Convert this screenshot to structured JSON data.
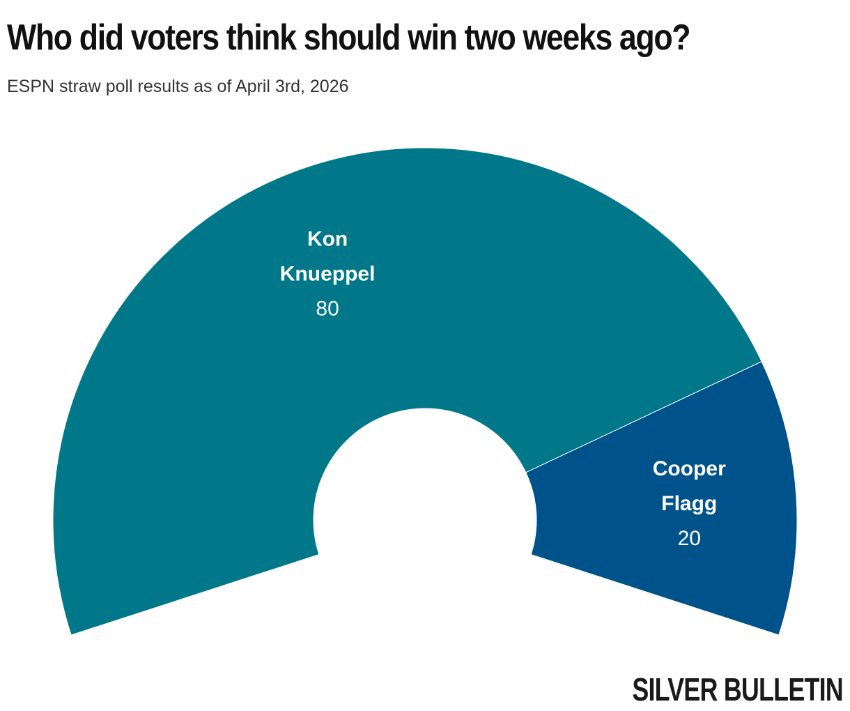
{
  "title": "Who did voters think should win two weeks ago?",
  "subtitle": "ESPN straw poll results as of April 3rd, 2026",
  "brand": "SILVER BULLETIN",
  "chart_data": {
    "type": "pie",
    "variant": "partial donut (216° arc, opening downward)",
    "slices": [
      {
        "name": "Kon Knueppel",
        "label_lines": [
          "Kon",
          "Knueppel"
        ],
        "value": 80,
        "color": "#00788A"
      },
      {
        "name": "Cooper Flagg",
        "label_lines": [
          "Cooper",
          "Flagg"
        ],
        "value": 20,
        "color": "#00538A"
      }
    ]
  }
}
